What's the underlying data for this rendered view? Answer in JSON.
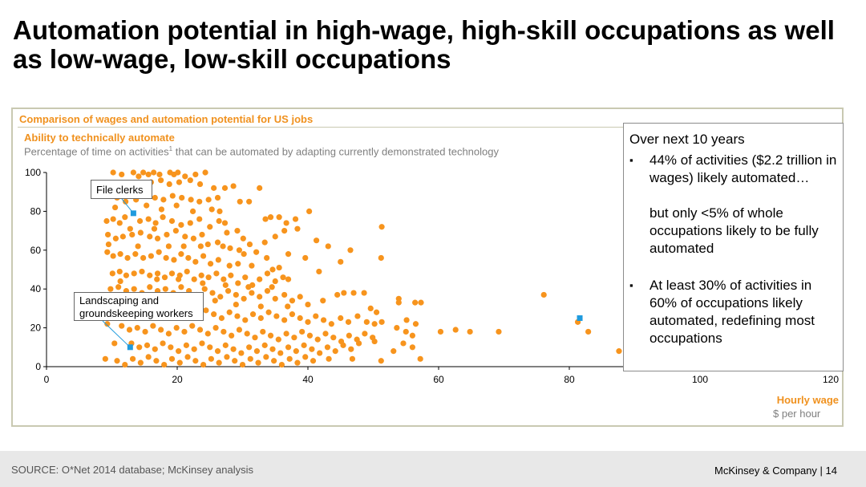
{
  "title": "Automation potential in high-wage, high-skill occupations as well as low-wage, low-skill occupations",
  "chart": {
    "heading": "Comparison of wages and automation potential for US jobs",
    "ylabel_main": "Ability to technically automate",
    "ylabel_sub_pre": "Percentage of time on activities",
    "ylabel_sub_sup": "1",
    "ylabel_sub_post": " that can be automated by adapting currently demonstrated technology",
    "xlabel_main": "Hourly wage",
    "xlabel_sub": "$ per hour"
  },
  "callouts": {
    "file_clerks": "File clerks",
    "landscaping_line1": "Landscaping and",
    "landscaping_line2": "groundskeeping workers"
  },
  "side_box": {
    "heading": "Over next 10 years",
    "bullet": "▪",
    "b1": "44% of activities ($2.2 trillion in wages) likely automated…",
    "b1_cont": "but only <5% of whole occupations likely to be fully automated",
    "b2": "At least 30% of activities in 60% of occupations likely automated, redefining most occupations"
  },
  "footer": {
    "source": "SOURCE: O*Net 2014 database; McKinsey analysis",
    "firm": "McKinsey & Company   |   14"
  },
  "colors": {
    "point": "#f7941d",
    "highlight": "#1f9bde",
    "axis_text": "#000000"
  },
  "chart_data": {
    "type": "scatter",
    "xlim": [
      0,
      120
    ],
    "ylim": [
      0,
      100
    ],
    "xticks": [
      0,
      20,
      40,
      60,
      80,
      100,
      120
    ],
    "yticks": [
      0,
      20,
      40,
      60,
      80,
      100
    ],
    "grid": false,
    "highlighted": [
      {
        "label": "File clerks",
        "x": 13.3,
        "y": 79
      },
      {
        "label": "Landscaping and groundskeeping workers",
        "x": 12.8,
        "y": 10
      },
      {
        "label": "",
        "x": 81.6,
        "y": 25
      }
    ],
    "points": [
      [
        10.2,
        100
      ],
      [
        11.5,
        99
      ],
      [
        13.3,
        100
      ],
      [
        14.1,
        98
      ],
      [
        14.8,
        100
      ],
      [
        15.6,
        99
      ],
      [
        16.4,
        100
      ],
      [
        17.3,
        99
      ],
      [
        18.9,
        100
      ],
      [
        19.5,
        99
      ],
      [
        20.1,
        100
      ],
      [
        21.2,
        98
      ],
      [
        22.8,
        99
      ],
      [
        24.3,
        100
      ],
      [
        16.0,
        95
      ],
      [
        17.5,
        96
      ],
      [
        18.8,
        94
      ],
      [
        20.3,
        95
      ],
      [
        22.0,
        96
      ],
      [
        23.5,
        94
      ],
      [
        25.6,
        92
      ],
      [
        27.3,
        92
      ],
      [
        28.6,
        93
      ],
      [
        32.6,
        92
      ],
      [
        9.6,
        88
      ],
      [
        10.8,
        87
      ],
      [
        12.1,
        85
      ],
      [
        13.7,
        86
      ],
      [
        15.2,
        88
      ],
      [
        16.6,
        87
      ],
      [
        17.9,
        86
      ],
      [
        19.3,
        88
      ],
      [
        20.7,
        87
      ],
      [
        22.1,
        86
      ],
      [
        23.4,
        85
      ],
      [
        24.8,
        86
      ],
      [
        26.2,
        87
      ],
      [
        29.6,
        85
      ],
      [
        31.0,
        85
      ],
      [
        9.2,
        75
      ],
      [
        10.2,
        76
      ],
      [
        11.2,
        74
      ],
      [
        12.0,
        77
      ],
      [
        14.3,
        75
      ],
      [
        15.6,
        76
      ],
      [
        16.7,
        74
      ],
      [
        17.8,
        77
      ],
      [
        19.2,
        75
      ],
      [
        20.6,
        73
      ],
      [
        22.0,
        74
      ],
      [
        23.4,
        76
      ],
      [
        25.0,
        72
      ],
      [
        26.4,
        75
      ],
      [
        27.3,
        74
      ],
      [
        33.5,
        76
      ],
      [
        34.3,
        77
      ],
      [
        35.6,
        77
      ],
      [
        36.7,
        74
      ],
      [
        38.1,
        76
      ],
      [
        40.2,
        80
      ],
      [
        38.4,
        71
      ],
      [
        36.4,
        70
      ],
      [
        51.3,
        72
      ],
      [
        9.4,
        68
      ],
      [
        10.6,
        66
      ],
      [
        11.7,
        67
      ],
      [
        13.1,
        68
      ],
      [
        14.4,
        69
      ],
      [
        15.8,
        67
      ],
      [
        17.0,
        66
      ],
      [
        18.4,
        68
      ],
      [
        19.8,
        70
      ],
      [
        21.2,
        67
      ],
      [
        22.5,
        66
      ],
      [
        23.8,
        68
      ],
      [
        24.7,
        63
      ],
      [
        26.2,
        64
      ],
      [
        27.0,
        62
      ],
      [
        28.1,
        61
      ],
      [
        29.5,
        60
      ],
      [
        31.1,
        63
      ],
      [
        30.1,
        66
      ],
      [
        33.4,
        64
      ],
      [
        35.0,
        67
      ],
      [
        41.3,
        65
      ],
      [
        43.1,
        62
      ],
      [
        46.5,
        60
      ],
      [
        51.2,
        56
      ],
      [
        9.3,
        59
      ],
      [
        10.2,
        57
      ],
      [
        11.3,
        58
      ],
      [
        12.4,
        56
      ],
      [
        13.6,
        58
      ],
      [
        14.8,
        56
      ],
      [
        16.0,
        57
      ],
      [
        17.2,
        59
      ],
      [
        18.3,
        56
      ],
      [
        19.5,
        55
      ],
      [
        20.6,
        58
      ],
      [
        21.7,
        56
      ],
      [
        22.8,
        54
      ],
      [
        24.0,
        57
      ],
      [
        25.1,
        53
      ],
      [
        26.3,
        55
      ],
      [
        28.0,
        52
      ],
      [
        29.3,
        53
      ],
      [
        31.4,
        52
      ],
      [
        35.6,
        51
      ],
      [
        39.6,
        56
      ],
      [
        45.0,
        54
      ],
      [
        10.1,
        48
      ],
      [
        11.2,
        49
      ],
      [
        12.2,
        47
      ],
      [
        13.4,
        48
      ],
      [
        14.6,
        49
      ],
      [
        15.8,
        47
      ],
      [
        17.0,
        48
      ],
      [
        18.1,
        46
      ],
      [
        19.2,
        48
      ],
      [
        20.4,
        47
      ],
      [
        21.5,
        49
      ],
      [
        22.6,
        45
      ],
      [
        23.7,
        47
      ],
      [
        24.8,
        46
      ],
      [
        26.0,
        48
      ],
      [
        27.1,
        45
      ],
      [
        28.2,
        47
      ],
      [
        29.3,
        43
      ],
      [
        30.4,
        46
      ],
      [
        31.5,
        42
      ],
      [
        32.6,
        45
      ],
      [
        33.8,
        48
      ],
      [
        35.0,
        44
      ],
      [
        37.0,
        45
      ],
      [
        34.6,
        50
      ],
      [
        9.8,
        40
      ],
      [
        11.0,
        41
      ],
      [
        12.2,
        39
      ],
      [
        13.4,
        40
      ],
      [
        14.6,
        38
      ],
      [
        15.8,
        41
      ],
      [
        17.0,
        39
      ],
      [
        18.2,
        40
      ],
      [
        19.4,
        38
      ],
      [
        20.6,
        41
      ],
      [
        21.8,
        39
      ],
      [
        23.0,
        37
      ],
      [
        24.2,
        40
      ],
      [
        25.4,
        38
      ],
      [
        26.6,
        36
      ],
      [
        27.8,
        39
      ],
      [
        29.0,
        37
      ],
      [
        30.2,
        35
      ],
      [
        31.4,
        38
      ],
      [
        32.6,
        36
      ],
      [
        33.8,
        39
      ],
      [
        35.0,
        35
      ],
      [
        36.4,
        37
      ],
      [
        37.6,
        34
      ],
      [
        38.8,
        36
      ],
      [
        40.0,
        32
      ],
      [
        42.3,
        34
      ],
      [
        44.5,
        37
      ],
      [
        45.5,
        38
      ],
      [
        47.0,
        38
      ],
      [
        48.6,
        38
      ],
      [
        49.6,
        30
      ],
      [
        50.5,
        28
      ],
      [
        53.9,
        35
      ],
      [
        53.9,
        33
      ],
      [
        56.4,
        33
      ],
      [
        57.3,
        33
      ],
      [
        76.1,
        37
      ],
      [
        11.2,
        30
      ],
      [
        12.4,
        31
      ],
      [
        13.6,
        29
      ],
      [
        14.8,
        30
      ],
      [
        16.0,
        28
      ],
      [
        17.2,
        31
      ],
      [
        18.4,
        29
      ],
      [
        19.6,
        27
      ],
      [
        20.8,
        30
      ],
      [
        22.0,
        28
      ],
      [
        23.2,
        26
      ],
      [
        24.4,
        29
      ],
      [
        25.6,
        27
      ],
      [
        26.8,
        25
      ],
      [
        28.0,
        28
      ],
      [
        29.2,
        26
      ],
      [
        30.4,
        24
      ],
      [
        31.6,
        27
      ],
      [
        32.8,
        25
      ],
      [
        34.0,
        28
      ],
      [
        35.2,
        26
      ],
      [
        36.4,
        24
      ],
      [
        37.6,
        27
      ],
      [
        38.8,
        25
      ],
      [
        40.0,
        23
      ],
      [
        41.2,
        26
      ],
      [
        42.4,
        24
      ],
      [
        43.6,
        22
      ],
      [
        45.0,
        25
      ],
      [
        46.2,
        23
      ],
      [
        47.6,
        26
      ],
      [
        49.0,
        23
      ],
      [
        50.2,
        22
      ],
      [
        51.3,
        23
      ],
      [
        55.1,
        24
      ],
      [
        56.5,
        22
      ],
      [
        11.5,
        21
      ],
      [
        12.7,
        19
      ],
      [
        13.9,
        20
      ],
      [
        15.1,
        18
      ],
      [
        16.3,
        21
      ],
      [
        17.5,
        19
      ],
      [
        18.7,
        17
      ],
      [
        19.9,
        20
      ],
      [
        21.1,
        18
      ],
      [
        22.3,
        21
      ],
      [
        23.5,
        19
      ],
      [
        24.7,
        17
      ],
      [
        25.9,
        20
      ],
      [
        27.1,
        18
      ],
      [
        28.3,
        16
      ],
      [
        29.5,
        19
      ],
      [
        30.7,
        17
      ],
      [
        31.9,
        15
      ],
      [
        33.1,
        18
      ],
      [
        34.3,
        16
      ],
      [
        35.5,
        14
      ],
      [
        36.7,
        17
      ],
      [
        37.9,
        15
      ],
      [
        39.1,
        18
      ],
      [
        40.3,
        16
      ],
      [
        41.5,
        14
      ],
      [
        42.7,
        17
      ],
      [
        43.9,
        15
      ],
      [
        45.1,
        13
      ],
      [
        46.3,
        16
      ],
      [
        47.5,
        14
      ],
      [
        48.7,
        17
      ],
      [
        49.9,
        15
      ],
      [
        53.6,
        20
      ],
      [
        55.0,
        18
      ],
      [
        56.0,
        16
      ],
      [
        60.3,
        18
      ],
      [
        62.6,
        19
      ],
      [
        64.8,
        18
      ],
      [
        69.2,
        18
      ],
      [
        81.3,
        23
      ],
      [
        82.9,
        18
      ],
      [
        13.0,
        12
      ],
      [
        14.2,
        10
      ],
      [
        15.4,
        11
      ],
      [
        16.6,
        9
      ],
      [
        17.8,
        12
      ],
      [
        19.0,
        10
      ],
      [
        20.2,
        8
      ],
      [
        21.4,
        11
      ],
      [
        22.6,
        9
      ],
      [
        23.8,
        12
      ],
      [
        25.0,
        10
      ],
      [
        26.2,
        8
      ],
      [
        27.4,
        11
      ],
      [
        28.6,
        9
      ],
      [
        29.8,
        7
      ],
      [
        31.0,
        10
      ],
      [
        32.2,
        8
      ],
      [
        33.4,
        11
      ],
      [
        34.6,
        9
      ],
      [
        35.8,
        7
      ],
      [
        37.0,
        10
      ],
      [
        38.2,
        8
      ],
      [
        39.4,
        11
      ],
      [
        40.6,
        9
      ],
      [
        41.8,
        7
      ],
      [
        43.0,
        10
      ],
      [
        44.2,
        8
      ],
      [
        45.4,
        11
      ],
      [
        46.6,
        9
      ],
      [
        47.8,
        12
      ],
      [
        50.2,
        13
      ],
      [
        54.6,
        12
      ],
      [
        56.0,
        10
      ],
      [
        53.1,
        8
      ],
      [
        87.6,
        8
      ],
      [
        10.8,
        3
      ],
      [
        12.0,
        1
      ],
      [
        13.2,
        4
      ],
      [
        14.4,
        2
      ],
      [
        15.6,
        5
      ],
      [
        16.8,
        3
      ],
      [
        18.0,
        1
      ],
      [
        19.2,
        4
      ],
      [
        20.4,
        2
      ],
      [
        21.6,
        5
      ],
      [
        22.8,
        3
      ],
      [
        24.0,
        1
      ],
      [
        25.2,
        4
      ],
      [
        26.4,
        2
      ],
      [
        27.6,
        5
      ],
      [
        28.8,
        3
      ],
      [
        30.0,
        1
      ],
      [
        31.2,
        4
      ],
      [
        32.4,
        2
      ],
      [
        33.6,
        5
      ],
      [
        34.8,
        3
      ],
      [
        36.0,
        1
      ],
      [
        37.2,
        4
      ],
      [
        38.4,
        2
      ],
      [
        39.6,
        5
      ],
      [
        40.8,
        3
      ],
      [
        43.2,
        4
      ],
      [
        46.8,
        4
      ],
      [
        51.2,
        3
      ],
      [
        57.2,
        4
      ],
      [
        9.5,
        63
      ],
      [
        10.5,
        82
      ],
      [
        11.6,
        89
      ],
      [
        12.8,
        71
      ],
      [
        14.0,
        62
      ],
      [
        15.3,
        83
      ],
      [
        16.5,
        71
      ],
      [
        17.6,
        81
      ],
      [
        18.7,
        62
      ],
      [
        19.9,
        83
      ],
      [
        21.0,
        62
      ],
      [
        22.4,
        80
      ],
      [
        23.6,
        62
      ],
      [
        25.3,
        81
      ],
      [
        26.5,
        80
      ],
      [
        27.6,
        69
      ],
      [
        29.2,
        70
      ],
      [
        30.2,
        58
      ],
      [
        32.1,
        59
      ],
      [
        33.7,
        56
      ],
      [
        37.0,
        58
      ],
      [
        41.7,
        49
      ],
      [
        36.2,
        46
      ],
      [
        9.9,
        34
      ],
      [
        9.3,
        22
      ],
      [
        10.4,
        12
      ],
      [
        9.0,
        4
      ],
      [
        11.3,
        44
      ],
      [
        13.2,
        37
      ],
      [
        15.0,
        33
      ],
      [
        16.9,
        45
      ],
      [
        18.6,
        35
      ],
      [
        20.2,
        45
      ],
      [
        22.2,
        33
      ],
      [
        23.9,
        43
      ],
      [
        25.8,
        34
      ],
      [
        27.4,
        42
      ],
      [
        29.0,
        32
      ],
      [
        30.9,
        41
      ],
      [
        32.8,
        31
      ],
      [
        34.5,
        41
      ],
      [
        36.9,
        31
      ]
    ]
  }
}
